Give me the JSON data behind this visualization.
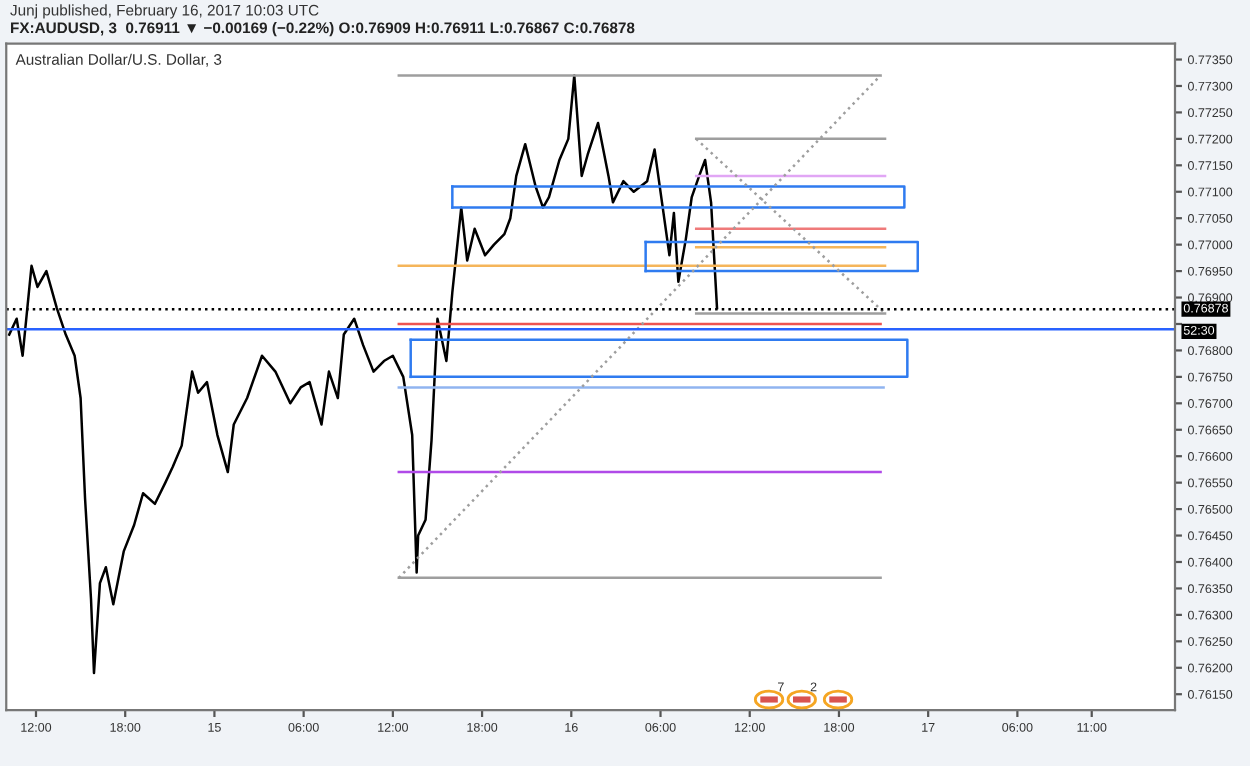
{
  "chart_data": {
    "type": "line",
    "title": "Australian Dollar/U.S. Dollar, 3",
    "subtitle": "FX:AUDUSD, 3  0.76911 ▼ −0.00169 (−0.22%) O:0.76909 H:0.76911 L:0.76867 C:0.76878",
    "annotations": [
      "Junj published, February 16, 2017 10:03 UTC",
      "52:30",
      {
        "text": "7",
        "x": "2017-02-16T13:18",
        "y": 0.7614
      },
      {
        "text": "2",
        "x": "2017-02-16T15:30",
        "y": 0.7614
      }
    ],
    "xlim": [
      "2017-02-14T10:00",
      "2017-02-17T16:36"
    ],
    "ylim": [
      0.7612,
      0.7738
    ],
    "xticks": [
      {
        "value": "2017-02-14T12:00",
        "label": "12:00"
      },
      {
        "value": "2017-02-14T18:00",
        "label": "18:00"
      },
      {
        "value": "2017-02-15",
        "label": "15"
      },
      {
        "value": "2017-02-15T06:00",
        "label": "06:00"
      },
      {
        "value": "2017-02-15T12:00",
        "label": "12:00"
      },
      {
        "value": "2017-02-15T18:00",
        "label": "18:00"
      },
      {
        "value": "2017-02-16",
        "label": "16"
      },
      {
        "value": "2017-02-16T06:00",
        "label": "06:00"
      },
      {
        "value": "2017-02-16T12:00",
        "label": "12:00"
      },
      {
        "value": "2017-02-16T18:00",
        "label": "18:00"
      },
      {
        "value": "2017-02-17",
        "label": "17"
      },
      {
        "value": "2017-02-17T06:00",
        "label": "06:00"
      },
      {
        "value": "2017-02-17T11:00",
        "label": "11:00"
      }
    ],
    "yticks": [
      {
        "value": 0.7615,
        "label": "0.76150"
      },
      {
        "value": 0.762,
        "label": "0.76200"
      },
      {
        "value": 0.7625,
        "label": "0.76250"
      },
      {
        "value": 0.763,
        "label": "0.76300"
      },
      {
        "value": 0.7635,
        "label": "0.76350"
      },
      {
        "value": 0.764,
        "label": "0.76400"
      },
      {
        "value": 0.7645,
        "label": "0.76450"
      },
      {
        "value": 0.765,
        "label": "0.76500"
      },
      {
        "value": 0.7655,
        "label": "0.76550"
      },
      {
        "value": 0.766,
        "label": "0.76600"
      },
      {
        "value": 0.7665,
        "label": "0.76650"
      },
      {
        "value": 0.767,
        "label": "0.76700"
      },
      {
        "value": 0.7675,
        "label": "0.76750"
      },
      {
        "value": 0.768,
        "label": "0.76800"
      },
      {
        "value": 0.7685,
        "label": null
      },
      {
        "value": 0.769,
        "label": "0.76900"
      },
      {
        "value": 0.7695,
        "label": "0.76950"
      },
      {
        "value": 0.77,
        "label": "0.77000"
      },
      {
        "value": 0.7705,
        "label": "0.77050"
      },
      {
        "value": 0.771,
        "label": "0.77100"
      },
      {
        "value": 0.7715,
        "label": "0.77150"
      },
      {
        "value": 0.772,
        "label": "0.77200"
      },
      {
        "value": 0.7725,
        "label": "0.77250"
      },
      {
        "value": 0.773,
        "label": "0.77300"
      },
      {
        "value": 0.7735,
        "label": "0.77350"
      }
    ],
    "grid": false,
    "marker": "none",
    "ref_lines": [
      {
        "axis": "y",
        "value": 0.76878,
        "label": "0.76878",
        "color": "#000000",
        "line_style": "dotted"
      },
      {
        "axis": "y",
        "value": 0.7684,
        "color": "#2962ff",
        "line_style": "solid"
      }
    ],
    "series": [
      {
        "color": "#000000",
        "line_style": "solid",
        "x": [
          "2017-02-14T10:12",
          "2017-02-14T10:42",
          "2017-02-14T11:06",
          "2017-02-14T11:42",
          "2017-02-14T12:06",
          "2017-02-14T12:42",
          "2017-02-14T13:00",
          "2017-02-14T13:24",
          "2017-02-14T14:00",
          "2017-02-14T14:36",
          "2017-02-14T15:00",
          "2017-02-14T15:18",
          "2017-02-14T15:42",
          "2017-02-14T15:54",
          "2017-02-14T16:18",
          "2017-02-14T16:42",
          "2017-02-14T17:12",
          "2017-02-14T17:54",
          "2017-02-14T18:36",
          "2017-02-14T19:12",
          "2017-02-14T20:00",
          "2017-02-14T20:42",
          "2017-02-14T21:12",
          "2017-02-14T21:48",
          "2017-02-14T22:30",
          "2017-02-14T22:54",
          "2017-02-14T23:30",
          "2017-02-15T00:12",
          "2017-02-15T00:54",
          "2017-02-15T01:18",
          "2017-02-15T02:12",
          "2017-02-15T03:12",
          "2017-02-15T04:06",
          "2017-02-15T05:06",
          "2017-02-15T05:48",
          "2017-02-15T06:24",
          "2017-02-15T07:12",
          "2017-02-15T07:42",
          "2017-02-15T08:18",
          "2017-02-15T08:42",
          "2017-02-15T09:24",
          "2017-02-15T10:00",
          "2017-02-15T10:42",
          "2017-02-15T11:24",
          "2017-02-15T12:00",
          "2017-02-15T12:42",
          "2017-02-15T13:18",
          "2017-02-15T13:36",
          "2017-02-15T13:42",
          "2017-02-15T14:12",
          "2017-02-15T14:36",
          "2017-02-15T15:00",
          "2017-02-15T15:36",
          "2017-02-15T16:00",
          "2017-02-15T16:36",
          "2017-02-15T17:00",
          "2017-02-15T17:30",
          "2017-02-15T18:12",
          "2017-02-15T18:48",
          "2017-02-15T19:30",
          "2017-02-15T19:54",
          "2017-02-15T20:18",
          "2017-02-15T20:54",
          "2017-02-15T21:36",
          "2017-02-15T22:06",
          "2017-02-15T22:30",
          "2017-02-15T23:12",
          "2017-02-15T23:48",
          "2017-02-16T00:12",
          "2017-02-16T00:42",
          "2017-02-16T01:06",
          "2017-02-16T01:48",
          "2017-02-16T02:30",
          "2017-02-16T02:48",
          "2017-02-16T03:30",
          "2017-02-16T04:12",
          "2017-02-16T05:06",
          "2017-02-16T05:36",
          "2017-02-16T06:06",
          "2017-02-16T06:36",
          "2017-02-16T06:54",
          "2017-02-16T07:12",
          "2017-02-16T07:42",
          "2017-02-16T08:06",
          "2017-02-16T08:36",
          "2017-02-16T09:00",
          "2017-02-16T09:24",
          "2017-02-16T09:48"
        ],
        "values": [
          0.7683,
          0.7686,
          0.7679,
          0.7696,
          0.7692,
          0.7695,
          0.7692,
          0.7688,
          0.7683,
          0.7679,
          0.7671,
          0.7652,
          0.7633,
          0.7619,
          0.7636,
          0.7639,
          0.7632,
          0.7642,
          0.7647,
          0.7653,
          0.7651,
          0.7655,
          0.7658,
          0.7662,
          0.7676,
          0.7672,
          0.7674,
          0.7664,
          0.7657,
          0.7666,
          0.7671,
          0.7679,
          0.7676,
          0.767,
          0.7673,
          0.7674,
          0.7666,
          0.7676,
          0.7671,
          0.7683,
          0.7686,
          0.7681,
          0.7676,
          0.7678,
          0.7679,
          0.7675,
          0.7664,
          0.7638,
          0.7645,
          0.7648,
          0.7663,
          0.7686,
          0.7678,
          0.7691,
          0.7707,
          0.7697,
          0.7703,
          0.7698,
          0.77,
          0.7702,
          0.7705,
          0.7713,
          0.7719,
          0.7711,
          0.7707,
          0.7709,
          0.7716,
          0.772,
          0.7732,
          0.7713,
          0.7717,
          0.7723,
          0.7713,
          0.7708,
          0.7712,
          0.771,
          0.7712,
          0.7718,
          0.7708,
          0.7698,
          0.7706,
          0.7693,
          0.7701,
          0.7709,
          0.7713,
          0.7716,
          0.7708,
          0.7688
        ]
      },
      {
        "color": "#9e9e9e",
        "line_style": "solid",
        "x": [
          "2017-02-15T12:24",
          "2017-02-16T20:48"
        ],
        "values": [
          0.7732,
          0.7732
        ]
      },
      {
        "color": "#9e9e9e",
        "line_style": "solid",
        "x": [
          "2017-02-15T12:24",
          "2017-02-16T20:48"
        ],
        "values": [
          0.7637,
          0.7637
        ]
      },
      {
        "color": "#9e9e9e",
        "line_style": "solid",
        "x": [
          "2017-02-16T08:24",
          "2017-02-16T21:06"
        ],
        "values": [
          0.772,
          0.772
        ]
      },
      {
        "color": "#9e9e9e",
        "line_style": "solid",
        "x": [
          "2017-02-16T08:24",
          "2017-02-16T21:06"
        ],
        "values": [
          0.7687,
          0.7687
        ]
      },
      {
        "color": "#e1a6f5",
        "line_style": "solid",
        "x": [
          "2017-02-16T08:24",
          "2017-02-16T21:06"
        ],
        "values": [
          0.7713,
          0.7713
        ]
      },
      {
        "color": "#ef7a7a",
        "line_style": "solid",
        "x": [
          "2017-02-16T08:24",
          "2017-02-16T21:06"
        ],
        "values": [
          0.7703,
          0.7703
        ]
      },
      {
        "color": "#f5b55a",
        "line_style": "solid",
        "x": [
          "2017-02-16T08:24",
          "2017-02-16T21:06"
        ],
        "values": [
          0.76995,
          0.76995
        ]
      },
      {
        "color": "#f5b55a",
        "line_style": "solid",
        "x": [
          "2017-02-15T12:24",
          "2017-02-16T21:06"
        ],
        "values": [
          0.7696,
          0.7696
        ]
      },
      {
        "color": "#ef5350",
        "line_style": "solid",
        "x": [
          "2017-02-15T12:24",
          "2017-02-16T20:48"
        ],
        "values": [
          0.7685,
          0.7685
        ]
      },
      {
        "color": "#90b4f0",
        "line_style": "solid",
        "x": [
          "2017-02-15T12:24",
          "2017-02-16T21:00"
        ],
        "values": [
          0.7673,
          0.7673
        ]
      },
      {
        "color": "#b04ae8",
        "line_style": "solid",
        "x": [
          "2017-02-15T12:24",
          "2017-02-16T20:48"
        ],
        "values": [
          0.7657,
          0.7657
        ]
      },
      {
        "color": "#2f7bf0",
        "line_style": "solid",
        "x": [
          "2017-02-15T16:00",
          "2017-02-16T22:24",
          "2017-02-16T22:24",
          "2017-02-15T16:00"
        ],
        "values": [
          0.7711,
          0.7711,
          0.7707,
          0.7707
        ]
      },
      {
        "color": "#2f7bf0",
        "line_style": "solid",
        "x": [
          "2017-02-15T16:00",
          "2017-02-15T16:00"
        ],
        "values": [
          0.7707,
          0.7711
        ]
      },
      {
        "color": "#2f7bf0",
        "line_style": "solid",
        "x": [
          "2017-02-16T05:00",
          "2017-02-16T23:18",
          "2017-02-16T23:18",
          "2017-02-16T05:00"
        ],
        "values": [
          0.77005,
          0.77005,
          0.7695,
          0.7695
        ]
      },
      {
        "color": "#2f7bf0",
        "line_style": "solid",
        "x": [
          "2017-02-16T05:00",
          "2017-02-16T05:00"
        ],
        "values": [
          0.7695,
          0.77005
        ]
      },
      {
        "color": "#2f7bf0",
        "line_style": "solid",
        "x": [
          "2017-02-15T13:12",
          "2017-02-16T22:36",
          "2017-02-16T22:36",
          "2017-02-15T13:12"
        ],
        "values": [
          0.7682,
          0.7682,
          0.7675,
          0.7675
        ]
      },
      {
        "color": "#2f7bf0",
        "line_style": "solid",
        "x": [
          "2017-02-15T13:12",
          "2017-02-15T13:12"
        ],
        "values": [
          0.7675,
          0.7682
        ]
      },
      {
        "color": "#9e9e9e",
        "line_style": "dotted",
        "x": [
          "2017-02-15T12:24",
          "2017-02-16T20:48"
        ],
        "values": [
          0.7637,
          0.7732
        ]
      },
      {
        "color": "#9e9e9e",
        "line_style": "dotted",
        "x": [
          "2017-02-16T08:24",
          "2017-02-16T21:06"
        ],
        "values": [
          0.772,
          0.7687
        ]
      }
    ]
  }
}
